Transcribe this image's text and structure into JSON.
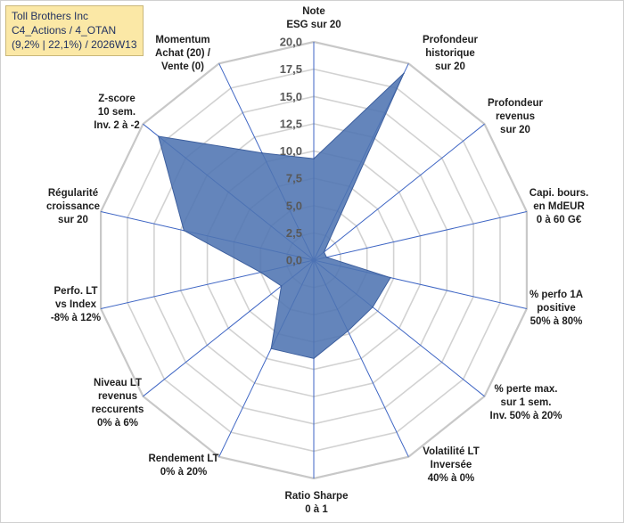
{
  "chart_title": {
    "line1": "Toll Brothers Inc",
    "line2": "C4_Actions / 4_OTAN",
    "line3": "(9,2% | 22,1%) / 2026W13"
  },
  "chart_data": {
    "type": "radar",
    "title": "Toll Brothers Inc",
    "rlim": [
      0,
      20
    ],
    "grid": true,
    "tick_values": [
      0,
      2.5,
      5,
      7.5,
      10,
      12.5,
      15,
      17.5,
      20
    ],
    "tick_labels": [
      "0,0",
      "2,5",
      "5,0",
      "7,5",
      "10,0",
      "12,5",
      "15,0",
      "17,5",
      "20,0"
    ],
    "categories": [
      [
        "Note",
        "ESG sur 20"
      ],
      [
        "Profondeur",
        "historique",
        "sur 20"
      ],
      [
        "Profondeur",
        "revenus",
        "sur 20"
      ],
      [
        "Capi. bours.",
        "en MdEUR",
        "0 à 60 G€"
      ],
      [
        "% perfo 1A",
        "positive",
        "50% à 80%"
      ],
      [
        "% perte max.",
        "sur 1 sem.",
        "Inv. 50% à 20%"
      ],
      [
        "Volatilité LT",
        "Inversée",
        "40% à 0%"
      ],
      [
        "Ratio Sharpe",
        "0 à 1"
      ],
      [
        "Rendement LT",
        "0% à 20%"
      ],
      [
        "Niveau LT",
        "revenus",
        "reccurents",
        "0% à 6%"
      ],
      [
        "Perfo. LT",
        "vs Index",
        "-8% à 12%"
      ],
      [
        "Régularité",
        "croissance",
        "sur 20"
      ],
      [
        "Z-score",
        "10 sem.",
        "Inv. 2 à -2"
      ],
      [
        "Momentum",
        "Achat (20) /",
        "Vente (0)"
      ]
    ],
    "series": [
      {
        "name": "Toll Brothers Inc",
        "color": "#4f74b2",
        "values": [
          9.3,
          19.0,
          1.2,
          1.2,
          7.2,
          6.9,
          7.2,
          9.0,
          9.0,
          3.8,
          5.0,
          12.2,
          18.2,
          10.9
        ]
      }
    ]
  }
}
